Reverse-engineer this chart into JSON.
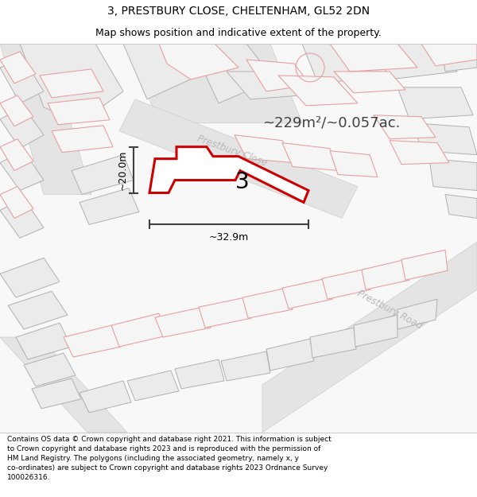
{
  "title_line1": "3, PRESTBURY CLOSE, CHELTENHAM, GL52 2DN",
  "title_line2": "Map shows position and indicative extent of the property.",
  "area_label": "~229m²/~0.057ac.",
  "property_number": "3",
  "dim_width": "~32.9m",
  "dim_height": "~20.0m",
  "street_label1": "Prestbury Close",
  "street_label2": "Prestbury Road",
  "footer_text": "Contains OS data © Crown copyright and database right 2021. This information is subject\nto Crown copyright and database rights 2023 and is reproduced with the permission of\nHM Land Registry. The polygons (including the associated geometry, namely x, y\nco-ordinates) are subject to Crown copyright and database rights 2023 Ordnance Survey\n100026316.",
  "plot_fill": "#ffffff",
  "plot_outline": "#cc0000",
  "neighbor_fill": "#ebebeb",
  "neighbor_ec_dark": "#b0b0b0",
  "neighbor_ec_pink": "#e8a0a0",
  "road_text_color": "#b8b8b8",
  "dim_color": "#404040",
  "map_bg": "#f0f0f0"
}
